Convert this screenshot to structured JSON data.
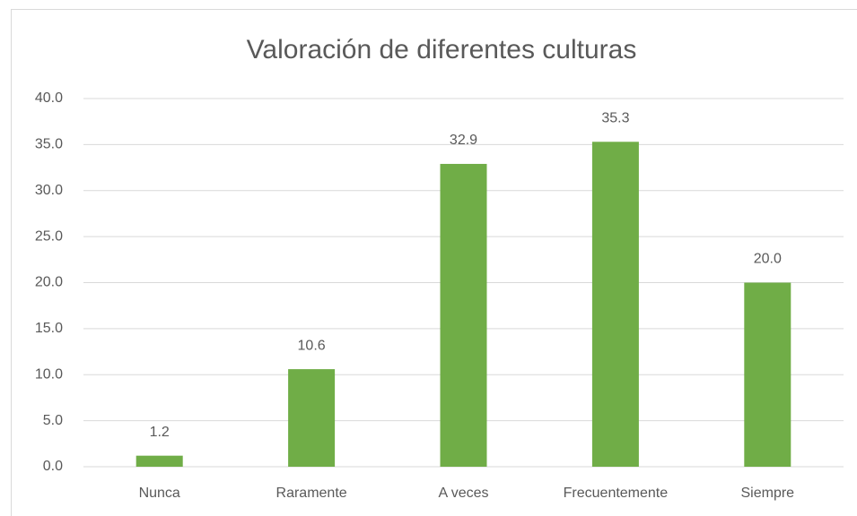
{
  "chart_data": {
    "type": "bar",
    "title": "Valoración de diferentes culturas",
    "categories": [
      "Nunca",
      "Raramente",
      "A veces",
      "Frecuentemente",
      "Siempre"
    ],
    "values": [
      1.2,
      10.6,
      32.9,
      35.3,
      20.0
    ],
    "value_labels": [
      "1.2",
      "10.6",
      "32.9",
      "35.3",
      "20.0"
    ],
    "color": "#70ad47",
    "ylim": [
      0,
      40
    ],
    "yticks": [
      {
        "value": 0,
        "label": "0.0"
      },
      {
        "value": 5,
        "label": "5.0"
      },
      {
        "value": 10,
        "label": "10.0"
      },
      {
        "value": 15,
        "label": "15.0"
      },
      {
        "value": 20,
        "label": "20.0"
      },
      {
        "value": 25,
        "label": "25.0"
      },
      {
        "value": 30,
        "label": "30.0"
      },
      {
        "value": 35,
        "label": "35.0"
      },
      {
        "value": 40,
        "label": "40.0"
      }
    ],
    "grid": true
  }
}
